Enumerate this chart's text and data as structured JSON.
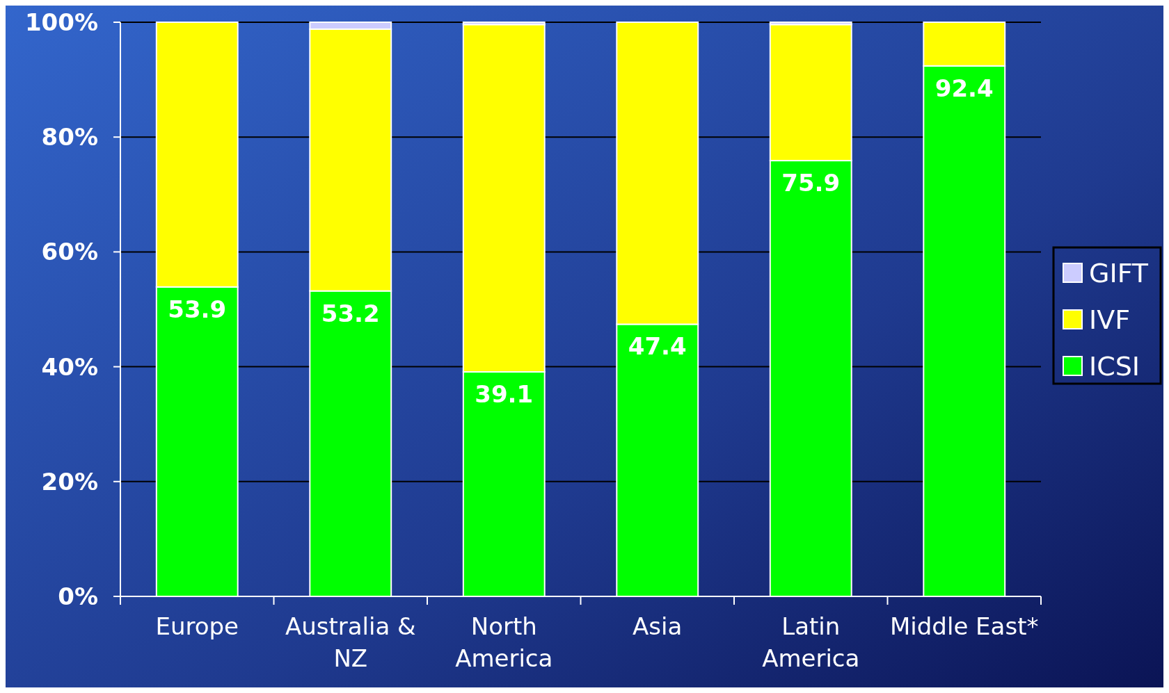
{
  "chart_data": {
    "type": "bar",
    "stacked": true,
    "categories": [
      "Europe",
      "Australia & NZ",
      "North America",
      "Asia",
      "Latin America",
      "Middle East*"
    ],
    "series": [
      {
        "name": "ICSI",
        "color": "#00ff00",
        "values": [
          53.9,
          53.2,
          39.1,
          47.4,
          75.9,
          92.4
        ],
        "value_labels": [
          "53.9",
          "53.2",
          "39.1",
          "47.4",
          "75.9",
          "92.4"
        ]
      },
      {
        "name": "IVF",
        "color": "#ffff00",
        "values": [
          46.1,
          45.6,
          60.5,
          52.6,
          23.7,
          7.6
        ]
      },
      {
        "name": "GIFT",
        "color": "#ccccff",
        "values": [
          0,
          1.2,
          0.4,
          0,
          0.4,
          0
        ]
      }
    ],
    "ylim": [
      0,
      100
    ],
    "yticks": [
      {
        "value": 0,
        "label": "0%"
      },
      {
        "value": 20,
        "label": "20%"
      },
      {
        "value": 40,
        "label": "40%"
      },
      {
        "value": 60,
        "label": "60%"
      },
      {
        "value": 80,
        "label": "80%"
      },
      {
        "value": 100,
        "label": "100%"
      }
    ],
    "grid": "y",
    "legend": "right"
  }
}
